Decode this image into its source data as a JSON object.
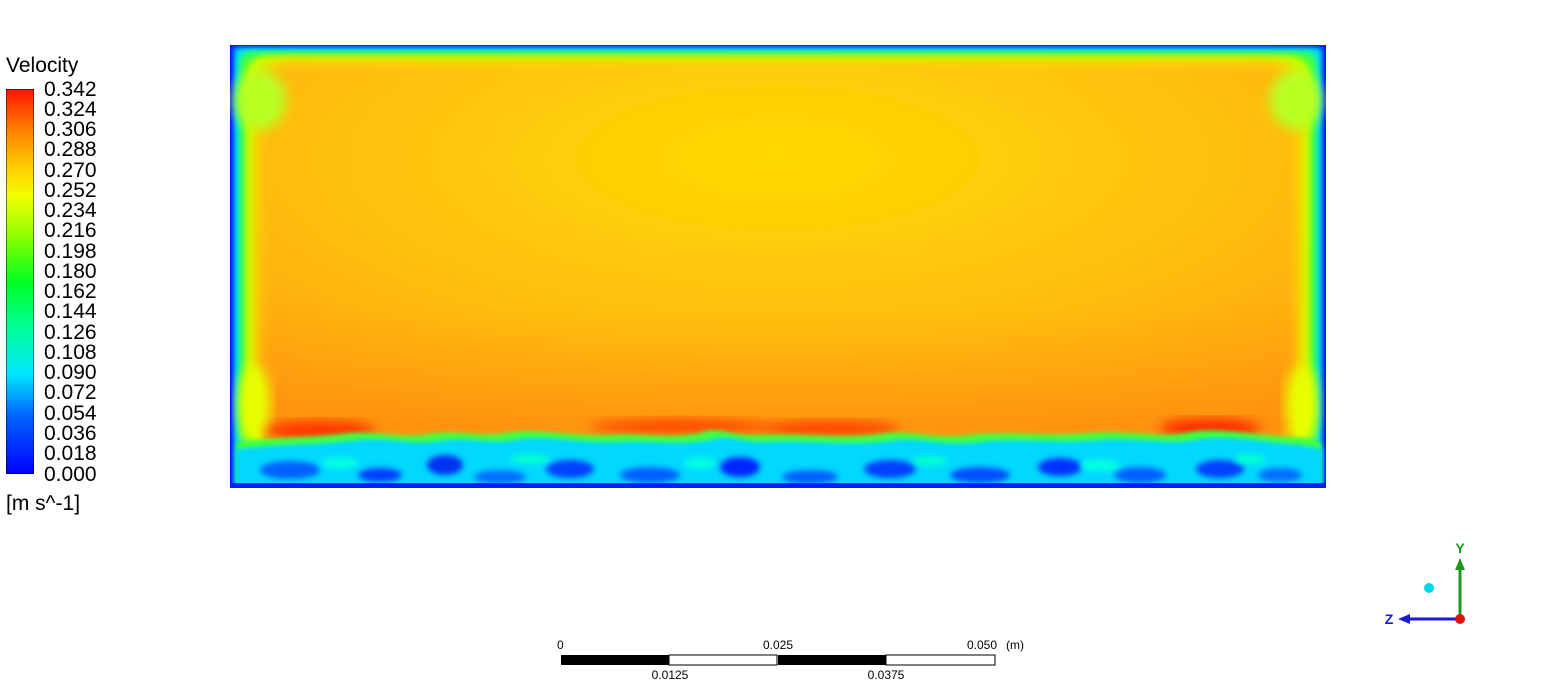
{
  "chart_data": {
    "type": "heatmap",
    "title": "",
    "legend": {
      "title": "Velocity",
      "unit": "[m s^-1]",
      "ticks": [
        "0.342",
        "0.324",
        "0.306",
        "0.288",
        "0.270",
        "0.252",
        "0.234",
        "0.216",
        "0.198",
        "0.180",
        "0.162",
        "0.144",
        "0.126",
        "0.108",
        "0.090",
        "0.072",
        "0.054",
        "0.036",
        "0.018",
        "0.000"
      ],
      "range": [
        0.0,
        0.342
      ],
      "placement": "left"
    },
    "field_summary": {
      "core_velocity": 0.27,
      "bottom_jet_velocity": 0.34,
      "wall_velocity": 0.0,
      "bottom_layer_velocity": 0.08
    },
    "scale_bar": {
      "unit": "(m)",
      "top_labels": [
        "0",
        "0.025",
        "0.050"
      ],
      "bottom_labels": [
        "0.0125",
        "0.0375"
      ]
    },
    "axis_triad": {
      "y_label": "Y",
      "z_label": "Z",
      "y_color": "#1a9a1a",
      "z_color": "#1a1ad0",
      "x_color": "#e01010",
      "marker_color": "#00d8e8"
    },
    "colormap": [
      "#0000ff",
      "#0060ff",
      "#00c8ff",
      "#00ffc0",
      "#00ff40",
      "#80ff00",
      "#e8ff00",
      "#ffd000",
      "#ff9000",
      "#ff5000",
      "#ff0000"
    ]
  }
}
